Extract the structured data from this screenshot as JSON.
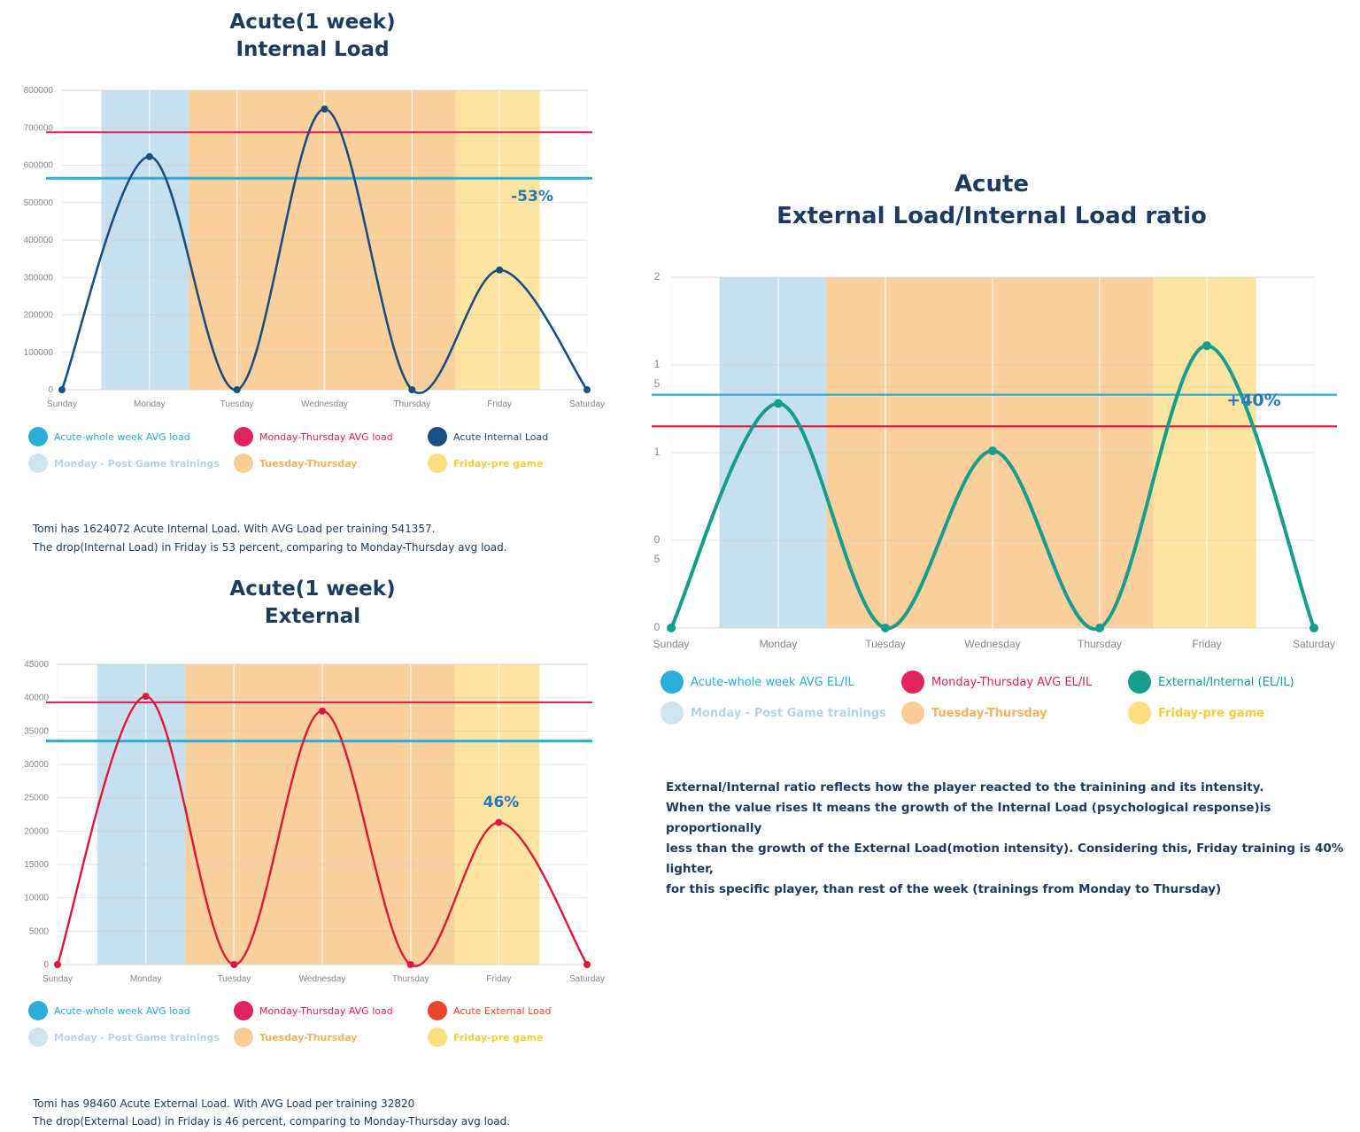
{
  "days": [
    "Sunday",
    "Monday",
    "Tuesday",
    "Wednesday",
    "Thursday",
    "Friday",
    "Saturday"
  ],
  "colors": {
    "navy": "#1a4f80",
    "red": "#e0163c",
    "teal": "#159e8c",
    "cyan": "#2aaed6",
    "pink": "#e0245e",
    "orange_red": "#e8452c",
    "band_monday": "#c8e0ee",
    "band_midweek": "#fad09c",
    "band_friday": "#fde4a0",
    "title": "#1e3a5f",
    "pct": "#2a78b8"
  },
  "charts": {
    "internal": {
      "title_line1": "Acute(1 week)",
      "title_line2": "Internal Load",
      "pct_label": "-53%",
      "note_line1": "Tomi has 1624072 Acute Internal Load. With AVG Load per training 541357.",
      "note_line2": "The drop(Internal Load) in Friday is 53 percent, comparing to Monday-Thursday avg load.",
      "legend": [
        {
          "label": "Acute-whole week AVG load",
          "color": "#2aaed6"
        },
        {
          "label": "Monday-Thursday AVG load",
          "color": "#e0245e"
        },
        {
          "label": "Acute Internal Load",
          "color": "#1a4f80"
        },
        {
          "label": "Monday - Post Game trainings",
          "color": "#a9cde3"
        },
        {
          "label": "Tuesday-Thursday",
          "color": "#f7a440"
        },
        {
          "label": "Friday-pre game",
          "color": "#f5c518"
        }
      ]
    },
    "external": {
      "title_line1": "Acute(1 week)",
      "title_line2": "External",
      "pct_label": "46%",
      "note_line1": "Tomi has 98460 Acute External Load. With AVG Load per training 32820",
      "note_line2": "The drop(External Load) in Friday is 46 percent, comparing to Monday-Thursday avg load.",
      "legend": [
        {
          "label": "Acute-whole week AVG load",
          "color": "#2aaed6"
        },
        {
          "label": "Monday-Thursday AVG load",
          "color": "#e0245e"
        },
        {
          "label": "Acute External Load",
          "color": "#e8452c"
        },
        {
          "label": "Monday - Post Game trainings",
          "color": "#a9cde3"
        },
        {
          "label": "Tuesday-Thursday",
          "color": "#f7a440"
        },
        {
          "label": "Friday-pre game",
          "color": "#f5c518"
        }
      ]
    },
    "ratio": {
      "title_line1": "Acute",
      "title_line2": "External Load/Internal Load ratio",
      "pct_label": "+40%",
      "y_tick_labels": [
        {
          "label": "0",
          "value": 0
        },
        {
          "label": "0\n5",
          "value": 0.5
        },
        {
          "label": "1",
          "value": 1
        },
        {
          "label": "1\n5",
          "value": 1.5
        },
        {
          "label": "2",
          "value": 2
        }
      ],
      "note_lines": [
        "External/Internal ratio reflects how the player reacted to the trainining and its intensity.",
        "When the value rises It means  the growth of the Internal Load (psychological response)is proportionally",
        "less than the growth of the External Load(motion intensity). Considering this, Friday training is 40% lighter,",
        "for this specific player, than rest of the week (trainings from Monday to Thursday)"
      ],
      "legend": [
        {
          "label": "Acute-whole week AVG EL/IL",
          "color": "#2aaed6"
        },
        {
          "label": "Monday-Thursday AVG EL/IL",
          "color": "#e0245e"
        },
        {
          "label": "External/Internal (EL/IL)",
          "color": "#159e8c"
        },
        {
          "label": "Monday - Post Game trainings",
          "color": "#a9cde3"
        },
        {
          "label": "Tuesday-Thursday",
          "color": "#f7a440"
        },
        {
          "label": "Friday-pre game",
          "color": "#f5c518"
        }
      ]
    }
  },
  "chart_data": [
    {
      "type": "line",
      "title": "Acute(1 week) Internal Load",
      "categories": [
        "Sunday",
        "Monday",
        "Tuesday",
        "Wednesday",
        "Thursday",
        "Friday",
        "Saturday"
      ],
      "series": [
        {
          "name": "Acute Internal Load",
          "values": [
            0,
            623000,
            0,
            750000,
            0,
            320000,
            0
          ]
        },
        {
          "name": "Acute-whole week AVG load",
          "values": [
            565000,
            565000,
            565000,
            565000,
            565000,
            565000,
            565000
          ]
        },
        {
          "name": "Monday-Thursday AVG load",
          "values": [
            688000,
            688000,
            688000,
            688000,
            688000,
            688000,
            688000
          ]
        }
      ],
      "ylim": [
        0,
        800000
      ],
      "yticks": [
        0,
        100000,
        200000,
        300000,
        400000,
        500000,
        600000,
        700000,
        800000
      ],
      "bands": [
        {
          "name": "Monday - Post Game trainings",
          "from": "Monday",
          "to": "Monday"
        },
        {
          "name": "Tuesday-Thursday",
          "from": "Tuesday",
          "to": "Thursday"
        },
        {
          "name": "Friday-pre game",
          "from": "Friday",
          "to": "Friday"
        }
      ],
      "annotation": "-53%",
      "grid": true,
      "legend": "bottom"
    },
    {
      "type": "line",
      "title": "Acute(1 week) External",
      "categories": [
        "Sunday",
        "Monday",
        "Tuesday",
        "Wednesday",
        "Thursday",
        "Friday",
        "Saturday"
      ],
      "series": [
        {
          "name": "Acute External Load",
          "values": [
            0,
            40200,
            0,
            38000,
            0,
            21300,
            0
          ]
        },
        {
          "name": "Acute-whole week AVG load",
          "values": [
            33500,
            33500,
            33500,
            33500,
            33500,
            33500,
            33500
          ]
        },
        {
          "name": "Monday-Thursday AVG load",
          "values": [
            39300,
            39300,
            39300,
            39300,
            39300,
            39300,
            39300
          ]
        }
      ],
      "ylim": [
        0,
        45000
      ],
      "yticks": [
        0,
        5000,
        10000,
        15000,
        20000,
        25000,
        30000,
        35000,
        40000,
        45000
      ],
      "bands": [
        {
          "name": "Monday - Post Game trainings",
          "from": "Monday",
          "to": "Monday"
        },
        {
          "name": "Tuesday-Thursday",
          "from": "Tuesday",
          "to": "Thursday"
        },
        {
          "name": "Friday-pre game",
          "from": "Friday",
          "to": "Friday"
        }
      ],
      "annotation": "46%",
      "grid": true,
      "legend": "bottom"
    },
    {
      "type": "line",
      "title": "Acute External Load/Internal Load ratio",
      "categories": [
        "Sunday",
        "Monday",
        "Tuesday",
        "Wednesday",
        "Thursday",
        "Friday",
        "Saturday"
      ],
      "series": [
        {
          "name": "External/Internal (EL/IL)",
          "values": [
            0,
            1.28,
            0,
            1.01,
            0,
            1.61,
            0
          ]
        },
        {
          "name": "Acute-whole week AVG EL/IL",
          "values": [
            1.33,
            1.33,
            1.33,
            1.33,
            1.33,
            1.33,
            1.33
          ]
        },
        {
          "name": "Monday-Thursday AVG EL/IL",
          "values": [
            1.15,
            1.15,
            1.15,
            1.15,
            1.15,
            1.15,
            1.15
          ]
        }
      ],
      "ylim": [
        0,
        2
      ],
      "bands": [
        {
          "name": "Monday - Post Game trainings",
          "from": "Monday",
          "to": "Monday"
        },
        {
          "name": "Tuesday-Thursday",
          "from": "Tuesday",
          "to": "Thursday"
        },
        {
          "name": "Friday-pre game",
          "from": "Friday",
          "to": "Friday"
        }
      ],
      "annotation": "+40%",
      "grid": true,
      "legend": "bottom"
    }
  ]
}
